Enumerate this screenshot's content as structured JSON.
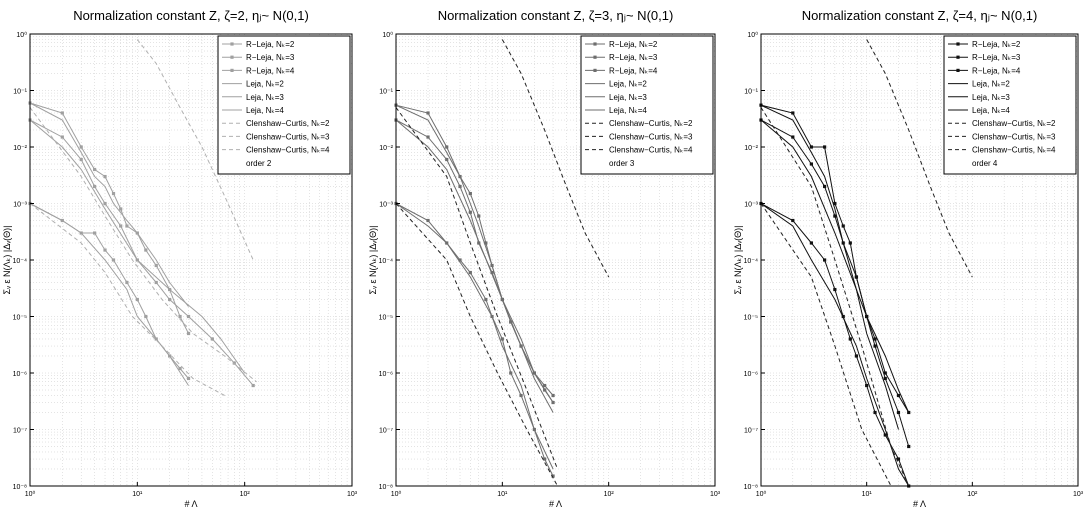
{
  "figure": {
    "panels": [
      {
        "title": "Normalization constant Z, ζ=2, ηⱼ~ N(0,1)",
        "xlabel": "# Λ",
        "ylabel": "Σᵥ ε N(Λₖ) |Δᵥ(Θ)|",
        "color": "#a0a0a0"
      },
      {
        "title": "Normalization constant Z, ζ=3, ηⱼ~ N(0,1)",
        "xlabel": "# Λ",
        "ylabel": "Σᵥ ε N(Λₖ) |Δᵥ(Θ)|",
        "color": "#6e6e6e"
      },
      {
        "title": "Normalization constant Z, ζ=4, ηⱼ~ N(0,1)",
        "xlabel": "# Λ",
        "ylabel": "Σᵥ ε N(Λₖ) |Δᵥ(Θ)|",
        "color": "#111111"
      }
    ]
  },
  "chart_data": [
    {
      "type": "line",
      "title": "Normalization constant Z, ζ=2, ηⱼ~ N(0,1)",
      "xlabel": "# Λ",
      "ylabel": "Σᵥ ε N(Λₖ) |Δᵥ(Θ)|",
      "xscale": "log",
      "yscale": "log",
      "xlim": [
        1,
        1000
      ],
      "ylim": [
        1e-08,
        1
      ],
      "xticks": [
        "10⁰",
        "10¹",
        "10²",
        "10³"
      ],
      "yticks": [
        "10⁰",
        "10⁻¹",
        "10⁻²",
        "10⁻³",
        "10⁻⁴",
        "10⁻⁵",
        "10⁻⁶",
        "10⁻⁷",
        "10⁻⁸"
      ],
      "grid": true,
      "legend_position": "top-right",
      "legend_note": "order 2",
      "series": [
        {
          "name": "R−Leja, Nₖ=2",
          "style": "solid-marker",
          "x": [
            1,
            2,
            3,
            4,
            5,
            6,
            7,
            8,
            10,
            12,
            15,
            20,
            25,
            30
          ],
          "y": [
            0.06,
            0.04,
            0.01,
            0.004,
            0.003,
            0.0015,
            0.0008,
            0.0004,
            0.0003,
            0.00015,
            8e-05,
            3e-05,
            1e-05,
            5e-06
          ]
        },
        {
          "name": "R−Leja, Nₖ=3",
          "style": "solid-marker",
          "x": [
            1,
            2,
            3,
            4,
            5,
            6,
            8,
            10,
            12,
            15,
            20,
            25,
            30
          ],
          "y": [
            0.001,
            0.0005,
            0.0003,
            0.0003,
            0.00015,
            0.0001,
            4e-05,
            2e-05,
            1e-05,
            4e-06,
            2e-06,
            1.2e-06,
            8e-07
          ]
        },
        {
          "name": "R−Leja, Nₖ=4",
          "style": "solid-marker",
          "x": [
            1,
            2,
            3,
            4,
            5,
            7,
            10,
            15,
            20,
            30,
            50,
            80,
            120
          ],
          "y": [
            0.03,
            0.015,
            0.006,
            0.002,
            0.001,
            0.0004,
            0.0001,
            4e-05,
            2e-05,
            1e-05,
            4e-06,
            1.5e-06,
            6e-07
          ]
        },
        {
          "name": "Leja, Nₖ=2",
          "style": "solid",
          "x": [
            1,
            2,
            3,
            4,
            5,
            6,
            8,
            10,
            15,
            20,
            30
          ],
          "y": [
            0.06,
            0.03,
            0.008,
            0.003,
            0.002,
            0.001,
            0.0005,
            0.0003,
            0.0001,
            4e-05,
            1.5e-05
          ]
        },
        {
          "name": "Leja, Nₖ=3",
          "style": "solid",
          "x": [
            1,
            2,
            3,
            5,
            8,
            10,
            15,
            20,
            30
          ],
          "y": [
            0.001,
            0.0005,
            0.0003,
            0.0001,
            3e-05,
            1e-05,
            4e-06,
            2e-06,
            6e-07
          ]
        },
        {
          "name": "Leja, Nₖ=4",
          "style": "solid",
          "x": [
            1,
            2,
            3,
            5,
            10,
            20,
            40,
            60,
            100
          ],
          "y": [
            0.03,
            0.01,
            0.004,
            0.0008,
            0.0001,
            3e-05,
            1e-05,
            4e-06,
            1e-06
          ]
        },
        {
          "name": "Clenshaw−Curtis, Nₖ=2",
          "style": "dash",
          "x": [
            1,
            3,
            5,
            9,
            17,
            33,
            65,
            129
          ],
          "y": [
            0.05,
            0.003,
            0.0006,
            0.0001,
            2e-05,
            5e-06,
            2e-06,
            7e-07
          ]
        },
        {
          "name": "Clenshaw−Curtis, Nₖ=3",
          "style": "dash",
          "x": [
            1,
            3,
            5,
            9,
            17,
            33,
            65
          ],
          "y": [
            0.001,
            0.0002,
            6e-05,
            1e-05,
            3e-06,
            8e-07,
            4e-07
          ]
        },
        {
          "name": "Clenshaw−Curtis, Nₖ=4",
          "style": "dash",
          "x": [
            10,
            15,
            25,
            40,
            70,
            120
          ],
          "y": [
            0.8,
            0.3,
            0.05,
            0.01,
            0.001,
            0.0001
          ]
        }
      ]
    },
    {
      "type": "line",
      "title": "Normalization constant Z, ζ=3, ηⱼ~ N(0,1)",
      "xlabel": "# Λ",
      "ylabel": "Σᵥ ε N(Λₖ) |Δᵥ(Θ)|",
      "xscale": "log",
      "yscale": "log",
      "xlim": [
        1,
        1000
      ],
      "ylim": [
        1e-08,
        1
      ],
      "xticks": [
        "10⁰",
        "10¹",
        "10²",
        "10³"
      ],
      "yticks": [
        "10⁰",
        "10⁻¹",
        "10⁻²",
        "10⁻³",
        "10⁻⁴",
        "10⁻⁵",
        "10⁻⁶",
        "10⁻⁷",
        "10⁻⁸"
      ],
      "grid": true,
      "legend_position": "top-right",
      "legend_note": "order 3",
      "series": [
        {
          "name": "R−Leja, Nₖ=2",
          "style": "solid-marker",
          "x": [
            1,
            2,
            3,
            4,
            5,
            6,
            7,
            8,
            10,
            12,
            15,
            20,
            25,
            30
          ],
          "y": [
            0.055,
            0.04,
            0.01,
            0.003,
            0.0015,
            0.0006,
            0.0002,
            8e-05,
            2e-05,
            8e-06,
            3e-06,
            1e-06,
            6e-07,
            4e-07
          ]
        },
        {
          "name": "R−Leja, Nₖ=3",
          "style": "solid-marker",
          "x": [
            1,
            2,
            3,
            4,
            5,
            7,
            8,
            10,
            12,
            15,
            20,
            25,
            30
          ],
          "y": [
            0.001,
            0.0005,
            0.0002,
            0.0001,
            6e-05,
            2e-05,
            1e-05,
            4e-06,
            1e-06,
            4e-07,
            1e-07,
            3e-08,
            1.5e-08
          ]
        },
        {
          "name": "R−Leja, Nₖ=4",
          "style": "solid-marker",
          "x": [
            1,
            2,
            3,
            4,
            5,
            6,
            8,
            10,
            12,
            15,
            20,
            25,
            30
          ],
          "y": [
            0.03,
            0.015,
            0.006,
            0.002,
            0.0007,
            0.0002,
            6e-05,
            2e-05,
            8e-06,
            3e-06,
            1e-06,
            5e-07,
            3e-07
          ]
        },
        {
          "name": "Leja, Nₖ=2",
          "style": "solid",
          "x": [
            1,
            2,
            3,
            4,
            5,
            6,
            8,
            10,
            15,
            20,
            30
          ],
          "y": [
            0.055,
            0.03,
            0.008,
            0.003,
            0.001,
            0.0004,
            8e-05,
            2e-05,
            3e-06,
            8e-07,
            2e-07
          ]
        },
        {
          "name": "Leja, Nₖ=3",
          "style": "solid",
          "x": [
            1,
            2,
            3,
            5,
            8,
            10,
            15,
            20,
            30
          ],
          "y": [
            0.001,
            0.0004,
            0.0002,
            5e-05,
            1e-05,
            3e-06,
            6e-07,
            1e-07,
            2e-08
          ]
        },
        {
          "name": "Leja, Nₖ=4",
          "style": "solid",
          "x": [
            1,
            2,
            3,
            5,
            10,
            15,
            20,
            30
          ],
          "y": [
            0.03,
            0.01,
            0.004,
            0.0005,
            2e-05,
            4e-06,
            1e-06,
            3e-07
          ]
        },
        {
          "name": "Clenshaw−Curtis, Nₖ=2",
          "style": "dash",
          "x": [
            1,
            3,
            5,
            9,
            17,
            33
          ],
          "y": [
            0.05,
            0.003,
            0.0002,
            1e-05,
            5e-07,
            2e-08
          ]
        },
        {
          "name": "Clenshaw−Curtis, Nₖ=3",
          "style": "dash",
          "x": [
            1,
            3,
            5,
            9,
            17,
            33
          ],
          "y": [
            0.001,
            0.0001,
            1e-05,
            1e-06,
            1e-07,
            1e-08
          ]
        },
        {
          "name": "Clenshaw−Curtis, Nₖ=4",
          "style": "dash",
          "x": [
            10,
            15,
            25,
            40,
            60,
            100
          ],
          "y": [
            0.8,
            0.2,
            0.02,
            0.002,
            0.0003,
            5e-05
          ]
        }
      ]
    },
    {
      "type": "line",
      "title": "Normalization constant Z, ζ=4, ηⱼ~ N(0,1)",
      "xlabel": "# Λ",
      "ylabel": "Σᵥ ε N(Λₖ) |Δᵥ(Θ)|",
      "xscale": "log",
      "yscale": "log",
      "xlim": [
        1,
        1000
      ],
      "ylim": [
        1e-08,
        1
      ],
      "xticks": [
        "10⁰",
        "10¹",
        "10²",
        "10³"
      ],
      "yticks": [
        "10⁰",
        "10⁻¹",
        "10⁻²",
        "10⁻³",
        "10⁻⁴",
        "10⁻⁵",
        "10⁻⁶",
        "10⁻⁷",
        "10⁻⁸"
      ],
      "grid": true,
      "legend_position": "top-right",
      "legend_note": "order 4",
      "series": [
        {
          "name": "R−Leja, Nₖ=2",
          "style": "solid-marker",
          "x": [
            1,
            2,
            3,
            4,
            5,
            6,
            7,
            8,
            10,
            12,
            15,
            20,
            25
          ],
          "y": [
            0.055,
            0.04,
            0.01,
            0.01,
            0.001,
            0.0004,
            0.0002,
            5e-05,
            1e-05,
            3e-06,
            8e-07,
            2e-07,
            5e-08
          ]
        },
        {
          "name": "R−Leja, Nₖ=3",
          "style": "solid-marker",
          "x": [
            1,
            2,
            3,
            4,
            5,
            6,
            7,
            8,
            10,
            12,
            15,
            20,
            25
          ],
          "y": [
            0.001,
            0.0005,
            0.0002,
            0.0001,
            3e-05,
            1e-05,
            4e-06,
            2e-06,
            6e-07,
            2e-07,
            8e-08,
            3e-08,
            1e-08
          ]
        },
        {
          "name": "R−Leja, Nₖ=4",
          "style": "solid-marker",
          "x": [
            1,
            2,
            3,
            4,
            5,
            6,
            8,
            10,
            12,
            15,
            20,
            25
          ],
          "y": [
            0.03,
            0.015,
            0.005,
            0.002,
            0.0006,
            0.0002,
            5e-05,
            1e-05,
            4e-06,
            1e-06,
            4e-07,
            2e-07
          ]
        },
        {
          "name": "Leja, Nₖ=2",
          "style": "solid",
          "x": [
            1,
            2,
            3,
            4,
            5,
            6,
            8,
            10,
            15,
            20
          ],
          "y": [
            0.055,
            0.03,
            0.008,
            0.003,
            0.0008,
            0.0002,
            3e-05,
            5e-06,
            6e-07,
            1e-07
          ]
        },
        {
          "name": "Leja, Nₖ=3",
          "style": "solid",
          "x": [
            1,
            2,
            3,
            5,
            8,
            10,
            15,
            20,
            25
          ],
          "y": [
            0.001,
            0.0004,
            0.0001,
            2e-05,
            3e-06,
            8e-07,
            1e-07,
            2e-08,
            1e-08
          ]
        },
        {
          "name": "Leja, Nₖ=4",
          "style": "solid",
          "x": [
            1,
            2,
            3,
            5,
            10,
            15,
            20,
            25
          ],
          "y": [
            0.03,
            0.01,
            0.003,
            0.0003,
            1e-05,
            2e-06,
            5e-07,
            2e-07
          ]
        },
        {
          "name": "Clenshaw−Curtis, Nₖ=2",
          "style": "dash",
          "x": [
            1,
            3,
            5,
            9,
            17,
            25
          ],
          "y": [
            0.05,
            0.002,
            0.0001,
            3e-06,
            5e-08,
            1e-08
          ]
        },
        {
          "name": "Clenshaw−Curtis, Nₖ=3",
          "style": "dash",
          "x": [
            1,
            3,
            5,
            9,
            17
          ],
          "y": [
            0.001,
            5e-05,
            3e-06,
            1e-07,
            1e-08
          ]
        },
        {
          "name": "Clenshaw−Curtis, Nₖ=4",
          "style": "dash",
          "x": [
            10,
            15,
            25,
            40,
            60,
            100
          ],
          "y": [
            0.8,
            0.2,
            0.02,
            0.002,
            0.0003,
            5e-05
          ]
        }
      ]
    }
  ]
}
